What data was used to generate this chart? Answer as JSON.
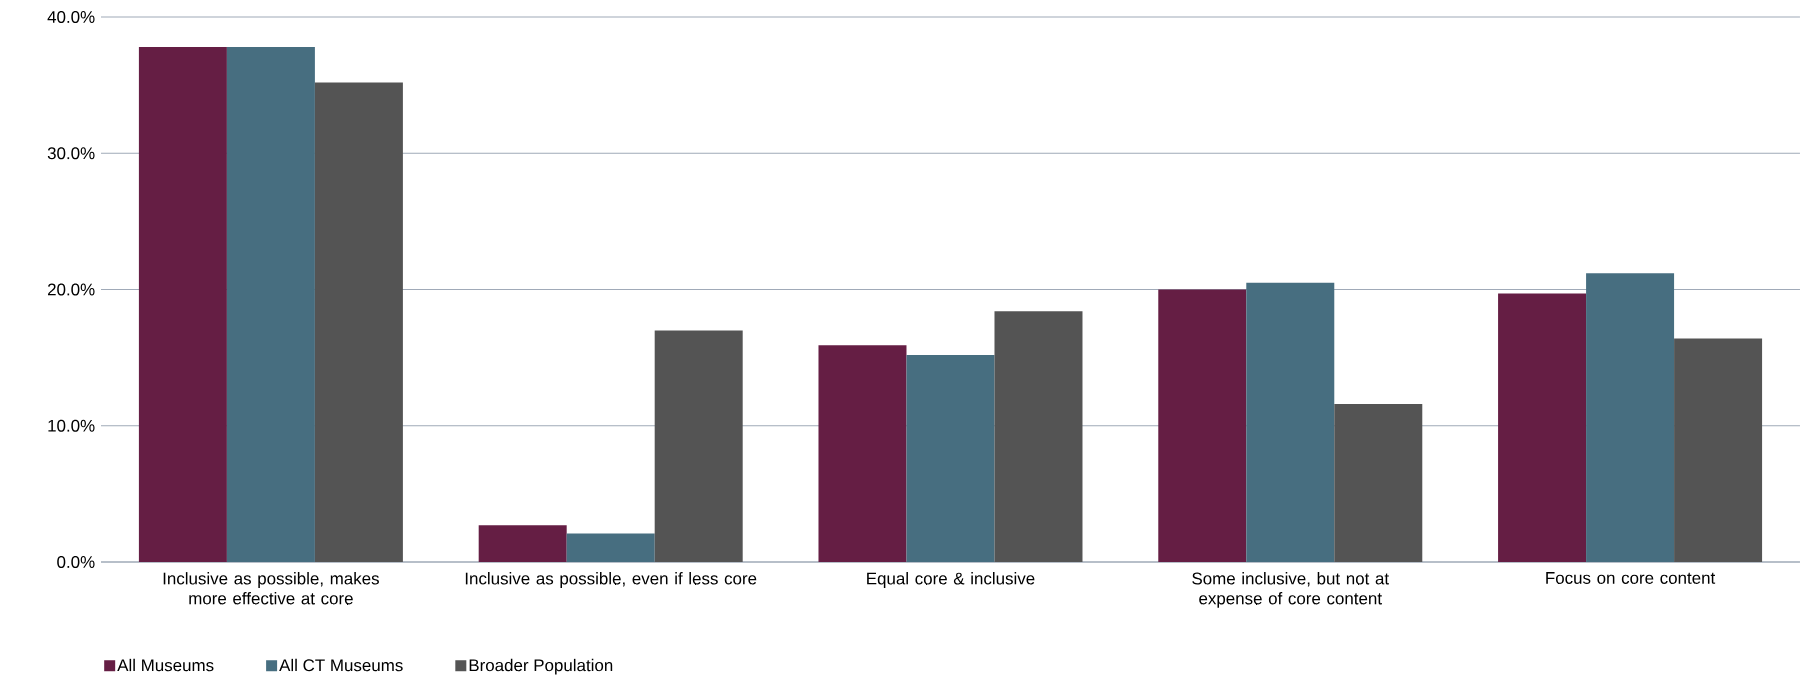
{
  "chart_data": {
    "type": "bar",
    "categories": [
      "Inclusive as possible, makes more effective at core",
      "Inclusive as possible, even if less core",
      "Equal core & inclusive",
      "Some inclusive, but not at expense of core content",
      "Focus on core content"
    ],
    "series": [
      {
        "name": "All Museums",
        "color": "#651e44",
        "values": [
          37.8,
          2.7,
          15.9,
          20.0,
          19.7
        ]
      },
      {
        "name": "All CT Museums",
        "color": "#476e80",
        "values": [
          37.8,
          2.1,
          15.2,
          20.5,
          21.2
        ]
      },
      {
        "name": "Broader Population",
        "color": "#545454",
        "values": [
          35.2,
          17.0,
          18.4,
          11.6,
          16.4
        ]
      }
    ],
    "ylim": [
      0,
      40
    ],
    "yticks": [
      {
        "value": 0,
        "label": "0.0%"
      },
      {
        "value": 10,
        "label": "10.0%"
      },
      {
        "value": 20,
        "label": "20.0%"
      },
      {
        "value": 30,
        "label": "30.0%"
      },
      {
        "value": 40,
        "label": "40.0%"
      }
    ],
    "grid": "y",
    "legend": "bottom left"
  }
}
